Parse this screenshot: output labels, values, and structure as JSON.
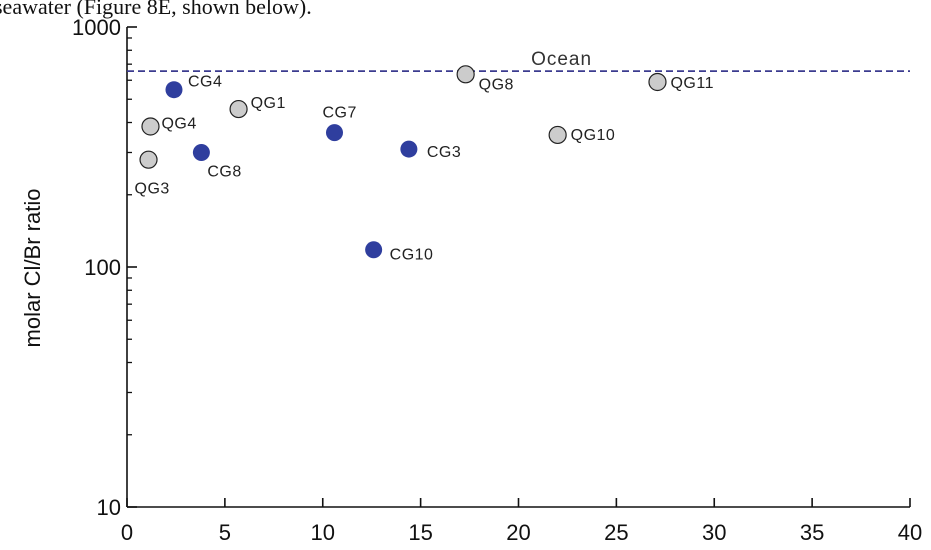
{
  "header_text": "seawater (Figure 8E, shown below).",
  "chart_data": {
    "type": "scatter",
    "title": "",
    "xlabel": "",
    "ylabel": "molar Cl/Br ratio",
    "xlim": [
      0,
      40
    ],
    "ylim": [
      10,
      1000
    ],
    "yscale": "log",
    "x_ticks": [
      0,
      5,
      10,
      15,
      20,
      25,
      30,
      35,
      40
    ],
    "y_ticks": [
      10,
      100,
      1000
    ],
    "grid": false,
    "reference_line": {
      "label": "Ocean",
      "y": 655,
      "style": "dashed",
      "color": "#3b3b8f"
    },
    "series": [
      {
        "color": "#2f3e9e",
        "points": [
          {
            "label": "CG4",
            "x": 2.4,
            "y": 548
          },
          {
            "label": "CG8",
            "x": 3.8,
            "y": 300
          },
          {
            "label": "CG7",
            "x": 10.6,
            "y": 363
          },
          {
            "label": "CG3",
            "x": 14.4,
            "y": 310
          },
          {
            "label": "CG10",
            "x": 12.6,
            "y": 118
          }
        ]
      },
      {
        "color": "#cccccc",
        "points": [
          {
            "label": "QG3",
            "x": 1.1,
            "y": 280
          },
          {
            "label": "QG4",
            "x": 1.2,
            "y": 385
          },
          {
            "label": "QG1",
            "x": 5.7,
            "y": 455
          },
          {
            "label": "QG8",
            "x": 17.3,
            "y": 635
          },
          {
            "label": "QG10",
            "x": 22.0,
            "y": 355
          },
          {
            "label": "QG11",
            "x": 27.1,
            "y": 590
          }
        ]
      }
    ]
  }
}
